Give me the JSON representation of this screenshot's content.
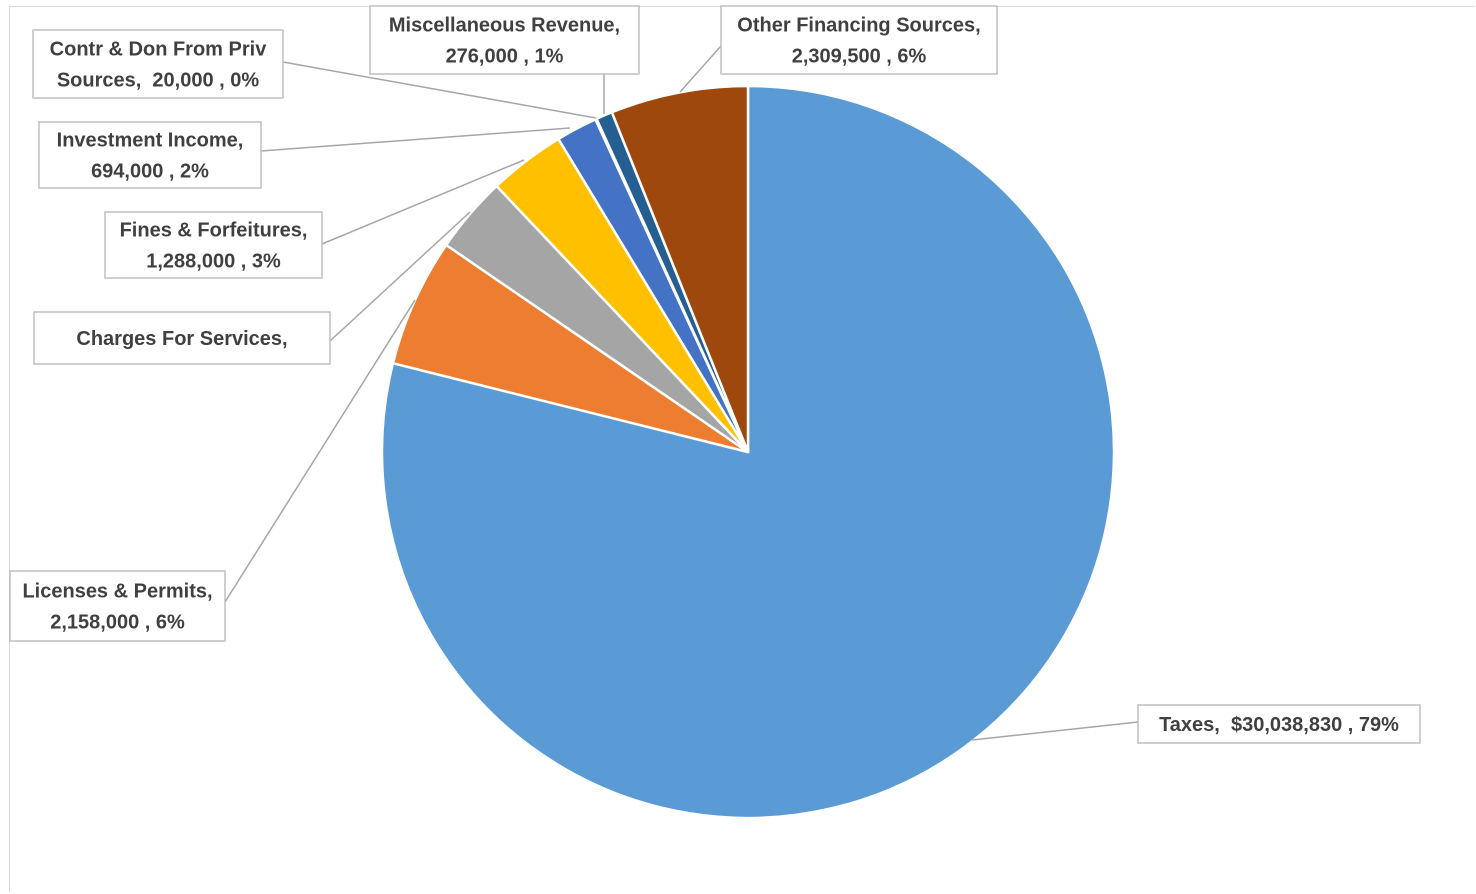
{
  "chart_data": {
    "type": "pie",
    "title": "",
    "start_angle_deg": 0,
    "direction": "clockwise",
    "slices": [
      {
        "name": "Taxes",
        "value": 30038830,
        "percent": "79%",
        "color": "#5b9bd5",
        "label_lines": [
          "Taxes,  $30,038,830 , 79%"
        ]
      },
      {
        "name": "Licenses & Permits",
        "value": 2158000,
        "percent": "6%",
        "color": "#ed7d31",
        "label_lines": [
          "Licenses & Permits,",
          "2,158,000 , 6%"
        ]
      },
      {
        "name": "Charges For Services",
        "value": 1288000,
        "percent": "",
        "color": "#a5a5a5",
        "label_lines": [
          "Charges For Services,"
        ]
      },
      {
        "name": "Fines & Forfeitures",
        "value": 1288000,
        "percent": "3%",
        "color": "#ffc000",
        "label_lines": [
          "Fines & Forfeitures,",
          "1,288,000 , 3%"
        ]
      },
      {
        "name": "Investment Income",
        "value": 694000,
        "percent": "2%",
        "color": "#4472c4",
        "label_lines": [
          "Investment Income,",
          "694,000 , 2%"
        ]
      },
      {
        "name": "Contr & Don From Priv Sources",
        "value": 20000,
        "percent": "0%",
        "color": "#70ad47",
        "label_lines": [
          "Contr & Don From Priv",
          "Sources,  20,000 , 0%"
        ]
      },
      {
        "name": "Miscellaneous Revenue",
        "value": 276000,
        "percent": "1%",
        "color": "#255e91",
        "label_lines": [
          "Miscellaneous Revenue,",
          "276,000 , 1%"
        ]
      },
      {
        "name": "Other Financing Sources",
        "value": 2309500,
        "percent": "6%",
        "color": "#9e480e",
        "label_lines": [
          "Other Financing Sources,",
          "2,309,500 , 6%"
        ]
      }
    ],
    "legend": "none"
  }
}
